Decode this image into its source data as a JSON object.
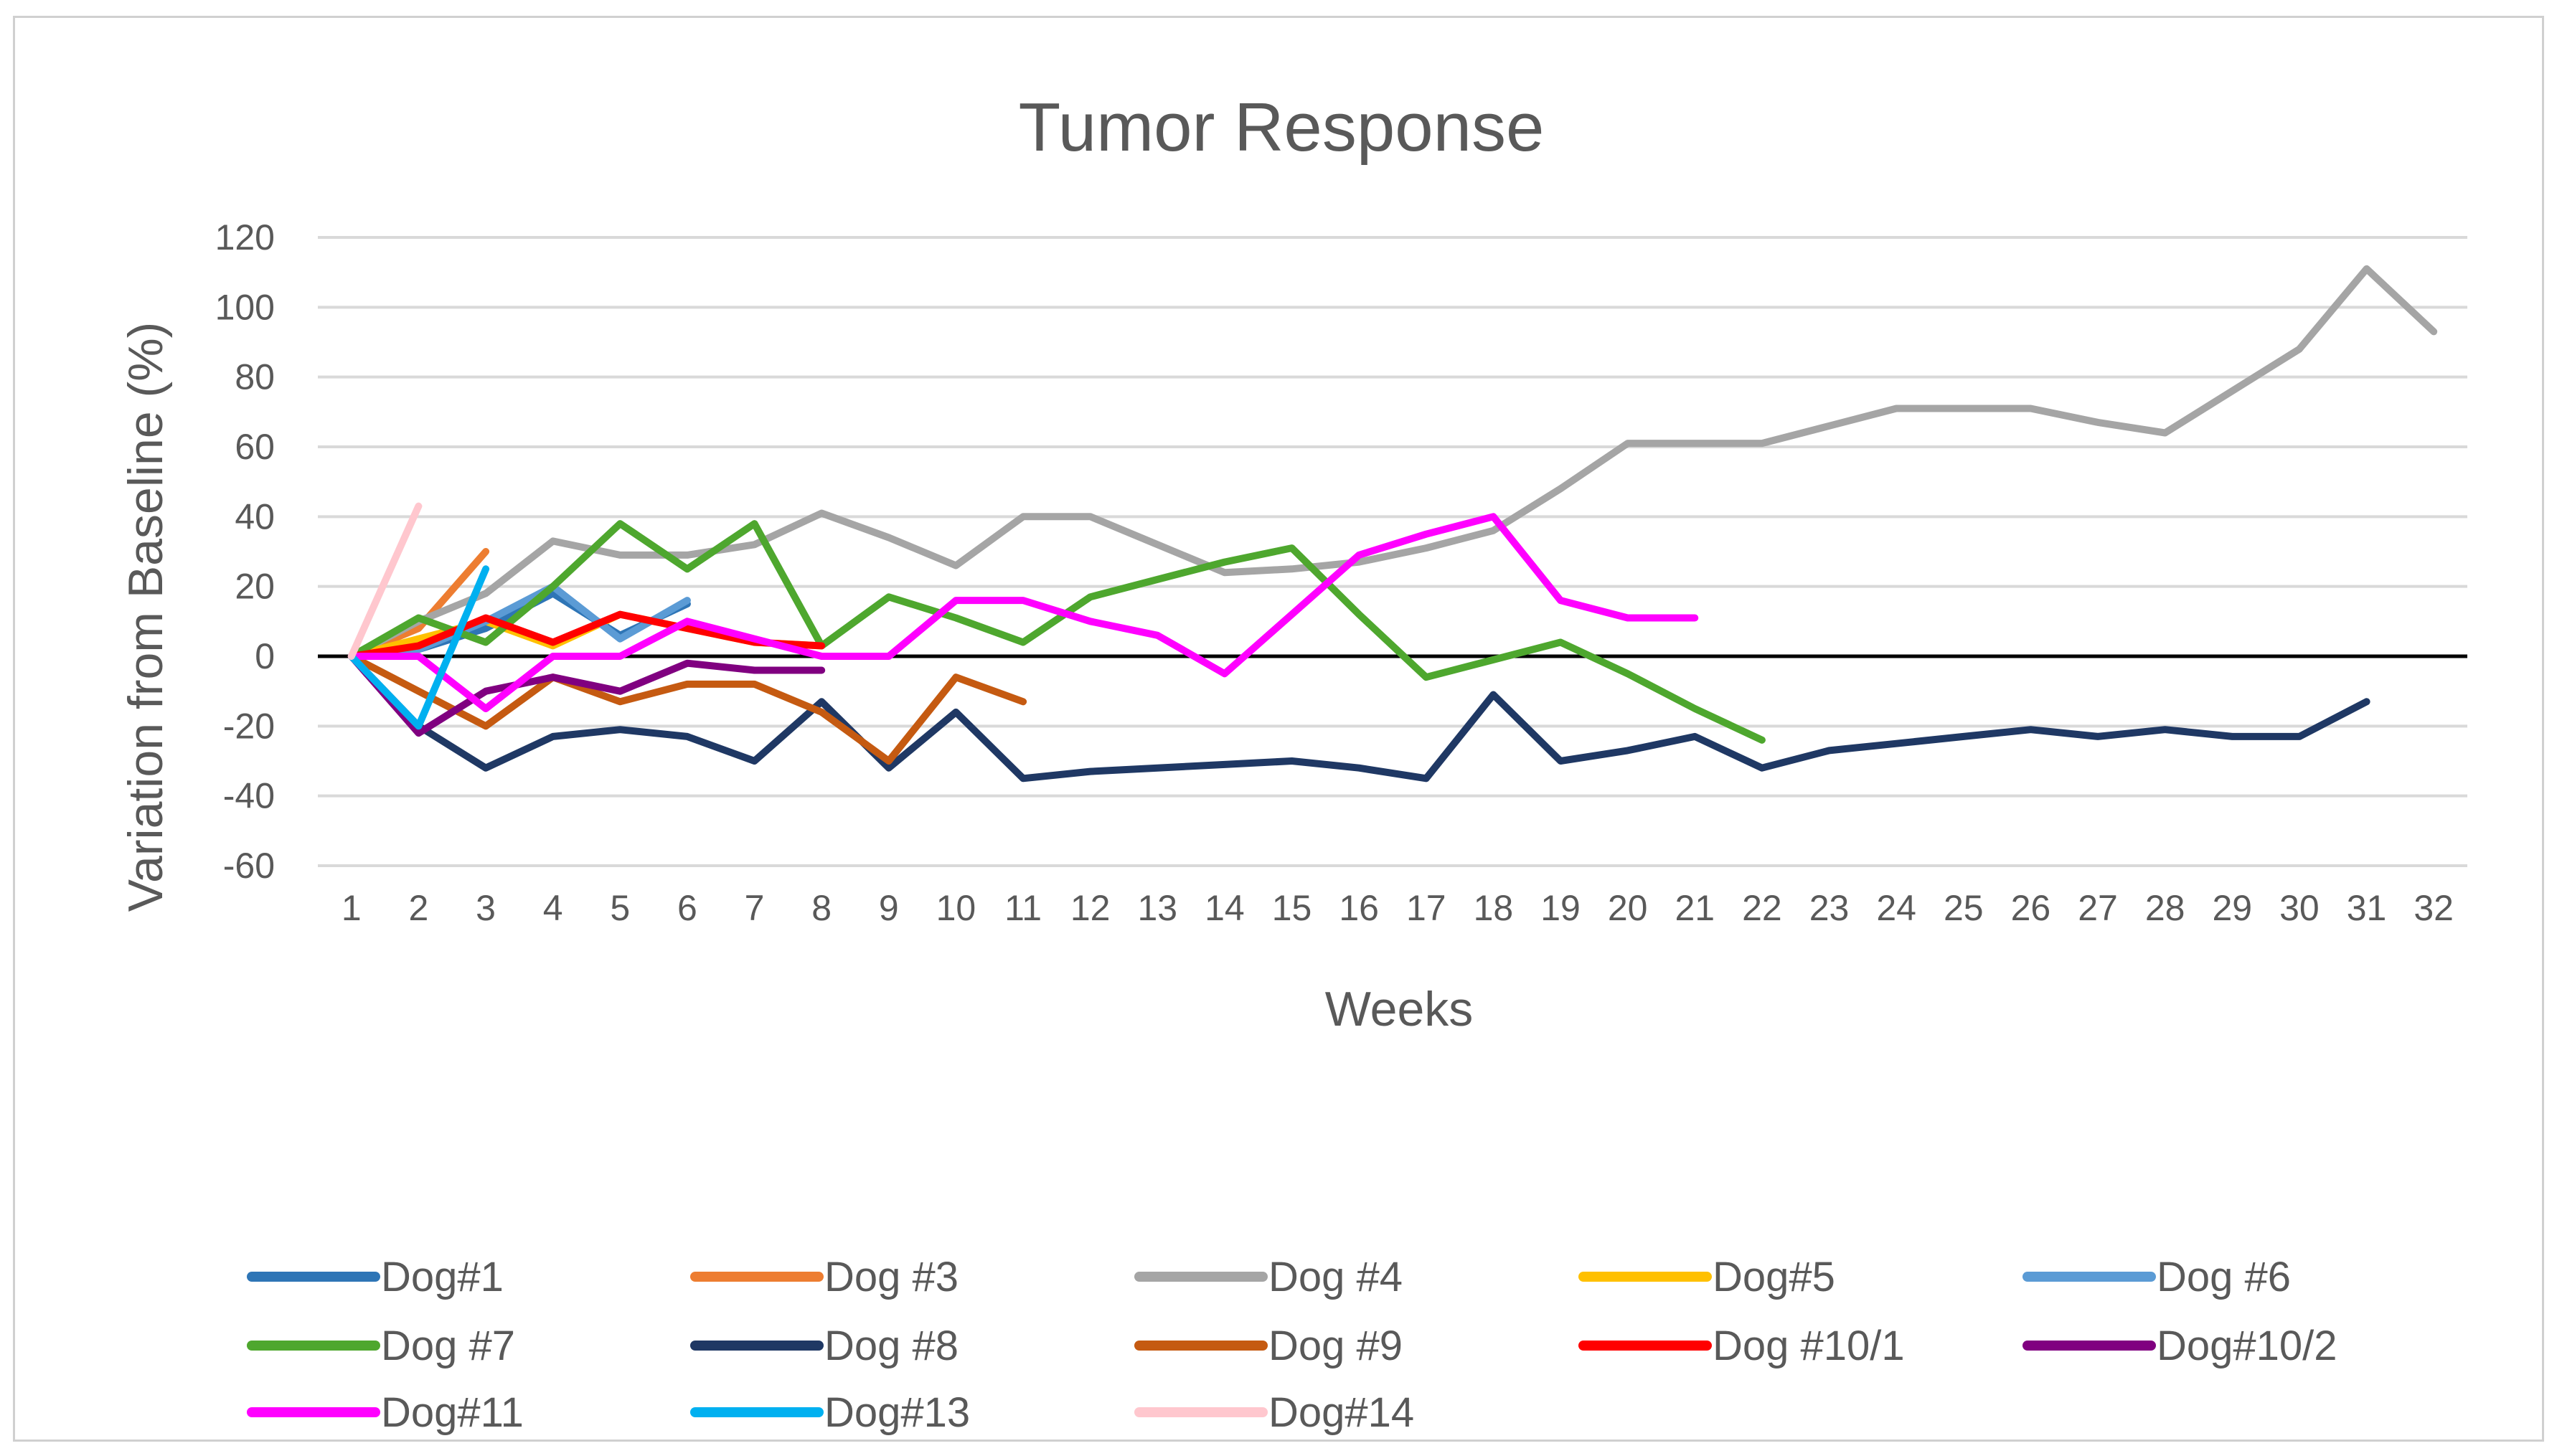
{
  "chart_data": {
    "type": "line",
    "title": "Tumor Response",
    "xlabel": "Weeks",
    "ylabel": "Variation from Baseline (%)",
    "ylim": [
      -60,
      120
    ],
    "yticks": [
      120,
      100,
      80,
      60,
      40,
      20,
      0,
      -20,
      -40,
      -60
    ],
    "categories": [
      "1",
      "2",
      "3",
      "4",
      "5",
      "6",
      "7",
      "8",
      "9",
      "10",
      "11",
      "12",
      "13",
      "14",
      "15",
      "16",
      "17",
      "18",
      "19",
      "20",
      "21",
      "22",
      "23",
      "24",
      "25",
      "26",
      "27",
      "28",
      "29",
      "30",
      "31",
      "32"
    ],
    "grid": true,
    "legend_position": "bottom",
    "series": [
      {
        "name": "Dog#1",
        "color": "#2E75B6",
        "x": [
          1,
          2,
          3,
          4,
          5,
          6
        ],
        "values": [
          0,
          2,
          8,
          18,
          6,
          15
        ]
      },
      {
        "name": "Dog #3",
        "color": "#ED7D31",
        "x": [
          1,
          2,
          3
        ],
        "values": [
          0,
          8,
          30
        ]
      },
      {
        "name": "Dog #4",
        "color": "#A5A5A5",
        "x": [
          1,
          2,
          3,
          4,
          5,
          6,
          7,
          8,
          9,
          10,
          11,
          12,
          13,
          14,
          15,
          16,
          17,
          18,
          19,
          20,
          21,
          22,
          23,
          24,
          25,
          26,
          27,
          28,
          29,
          30,
          31,
          32
        ],
        "values": [
          0,
          10,
          18,
          33,
          29,
          29,
          32,
          41,
          34,
          26,
          40,
          40,
          32,
          24,
          25,
          27,
          31,
          36,
          48,
          61,
          61,
          61,
          66,
          71,
          71,
          71,
          67,
          64,
          76,
          88,
          111,
          93
        ]
      },
      {
        "name": "Dog#5",
        "color": "#FFC000",
        "x": [
          1,
          2,
          3,
          4,
          5,
          6,
          7,
          8
        ],
        "values": [
          0,
          5,
          10,
          3,
          12,
          8,
          4,
          3
        ]
      },
      {
        "name": "Dog #6",
        "color": "#5B9BD5",
        "x": [
          1,
          2,
          3,
          4,
          5,
          6
        ],
        "values": [
          0,
          2,
          10,
          20,
          5,
          16
        ]
      },
      {
        "name": "Dog #7",
        "color": "#4EA72E",
        "x": [
          1,
          2,
          3,
          4,
          5,
          6,
          7,
          8,
          9,
          10,
          11,
          12,
          13,
          14,
          15,
          16,
          17,
          18,
          19,
          20,
          21,
          22
        ],
        "values": [
          0,
          11,
          4,
          20,
          38,
          25,
          38,
          3,
          17,
          11,
          4,
          17,
          22,
          27,
          31,
          12,
          -6,
          -1,
          4,
          -5,
          -15,
          -24
        ]
      },
      {
        "name": "Dog #8",
        "color": "#1F3864",
        "x": [
          1,
          2,
          3,
          4,
          5,
          6,
          7,
          8,
          9,
          10,
          11,
          12,
          13,
          14,
          15,
          16,
          17,
          18,
          19,
          20,
          21,
          22,
          23,
          24,
          25,
          26,
          27,
          28,
          29,
          30,
          31
        ],
        "values": [
          0,
          -20,
          -32,
          -23,
          -21,
          -23,
          -30,
          -13,
          -32,
          -16,
          -35,
          -33,
          -32,
          -31,
          -30,
          -32,
          -35,
          -11,
          -30,
          -27,
          -23,
          -32,
          -27,
          -25,
          -23,
          -21,
          -23,
          -21,
          -23,
          -23,
          -13
        ]
      },
      {
        "name": "Dog #9",
        "color": "#C55A11",
        "x": [
          1,
          2,
          3,
          4,
          5,
          6,
          7,
          8,
          9,
          10,
          11
        ],
        "values": [
          0,
          -10,
          -20,
          -6,
          -13,
          -8,
          -8,
          -16,
          -30,
          -6,
          -13
        ]
      },
      {
        "name": "Dog #10/1",
        "color": "#FF0000",
        "x": [
          1,
          2,
          3,
          4,
          5,
          6,
          7,
          8
        ],
        "values": [
          0,
          3,
          11,
          4,
          12,
          8,
          4,
          3
        ]
      },
      {
        "name": "Dog#10/2",
        "color": "#800080",
        "x": [
          1,
          2,
          3,
          4,
          5,
          6,
          7,
          8
        ],
        "values": [
          0,
          -22,
          -10,
          -6,
          -10,
          -2,
          -4,
          -4
        ]
      },
      {
        "name": "Dog#11",
        "color": "#FF00FF",
        "x": [
          1,
          2,
          3,
          4,
          5,
          6,
          7,
          8,
          9,
          10,
          11,
          12,
          13,
          14,
          15,
          16,
          17,
          18,
          19,
          20,
          21
        ],
        "values": [
          0,
          0,
          -15,
          0,
          0,
          10,
          5,
          0,
          0,
          16,
          16,
          10,
          6,
          -5,
          12,
          29,
          35,
          40,
          16,
          11,
          11
        ]
      },
      {
        "name": "Dog#13",
        "color": "#00B0F0",
        "x": [
          1,
          2,
          3
        ],
        "values": [
          0,
          -20,
          25
        ]
      },
      {
        "name": "Dog#14",
        "color": "#FFC7CE",
        "x": [
          1,
          2
        ],
        "values": [
          0,
          43
        ]
      }
    ]
  }
}
